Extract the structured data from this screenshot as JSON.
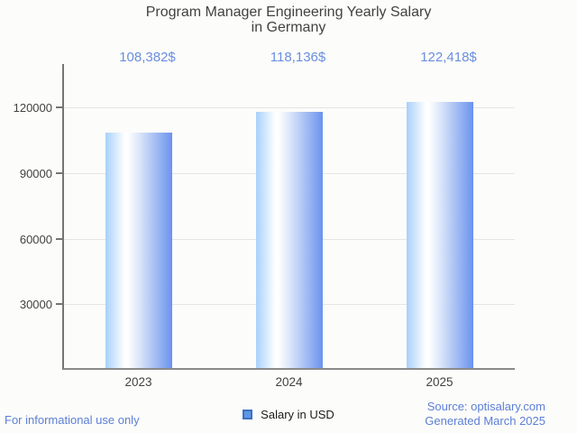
{
  "title": {
    "line1": "Program Manager Engineering Yearly Salary",
    "line2": "in Germany"
  },
  "legend": {
    "label": "Salary in USD"
  },
  "footer": {
    "disclaimer": "For informational use only",
    "source": "Source: optisalary.com",
    "generated": "Generated March 2025"
  },
  "colors": {
    "background": "#fcfcfa",
    "title_text": "#424242",
    "axis_line": "#757575",
    "gridline": "#e5e5e5",
    "tick_text": "#424242",
    "value_label_text": "#6a8edf",
    "footer_text": "#5c7fd6",
    "legend_swatch_fill": "#5d96e6",
    "legend_swatch_border": "#3f70c1",
    "bar_gradient_left": "#a8d1fb",
    "bar_gradient_mid": "#ffffff",
    "bar_gradient_right": "#6b93ee"
  },
  "chart_data": {
    "type": "bar",
    "title": "Program Manager Engineering Yearly Salary in Germany",
    "categories": [
      "2023",
      "2024",
      "2025"
    ],
    "values": [
      108382,
      118136,
      122418
    ],
    "value_labels": [
      "108,382$",
      "118,136$",
      "122,418$"
    ],
    "series_name": "Salary in USD",
    "xlabel": "",
    "ylabel": "",
    "yticks": [
      30000,
      60000,
      90000,
      120000
    ],
    "ytick_labels": [
      "30000",
      "60000",
      "90000",
      "120000"
    ],
    "ylim": [
      0,
      139800
    ],
    "grid": true,
    "legend_position": "bottom",
    "bar_orientation": "vertical"
  }
}
